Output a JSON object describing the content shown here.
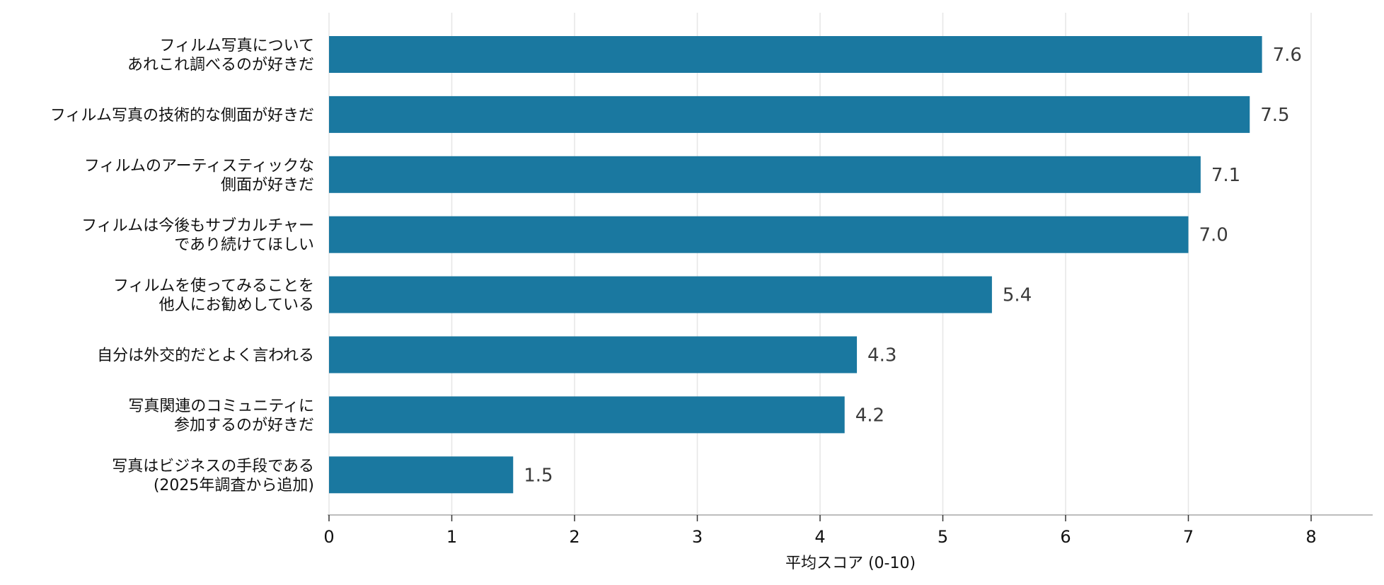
{
  "chart_data": {
    "type": "bar",
    "orientation": "horizontal",
    "categories": [
      [
        "フィルム写真について",
        "あれこれ調べるのが好きだ"
      ],
      [
        "フィルム写真の技術的な側面が好きだ"
      ],
      [
        "フィルムのアーティスティックな",
        "側面が好きだ"
      ],
      [
        "フィルムは今後もサブカルチャー",
        "であり続けてほしい"
      ],
      [
        "フィルムを使ってみることを",
        "他人にお勧めしている"
      ],
      [
        "自分は外交的だとよく言われる"
      ],
      [
        "写真関連のコミュニティに",
        "参加するのが好きだ"
      ],
      [
        "写真はビジネスの手段である",
        "(2025年調査から追加)"
      ]
    ],
    "values": [
      7.6,
      7.5,
      7.1,
      7.0,
      5.4,
      4.3,
      4.2,
      1.5
    ],
    "value_labels": [
      "7.6",
      "7.5",
      "7.1",
      "7.0",
      "5.4",
      "4.3",
      "4.2",
      "1.5"
    ],
    "xlabel": "平均スコア (0-10)",
    "xlim": [
      0,
      8.5
    ],
    "xticks": [
      "0",
      "1",
      "2",
      "3",
      "4",
      "5",
      "6",
      "7",
      "8"
    ],
    "grid": "vertical",
    "bar_color": "#1a78a0"
  }
}
